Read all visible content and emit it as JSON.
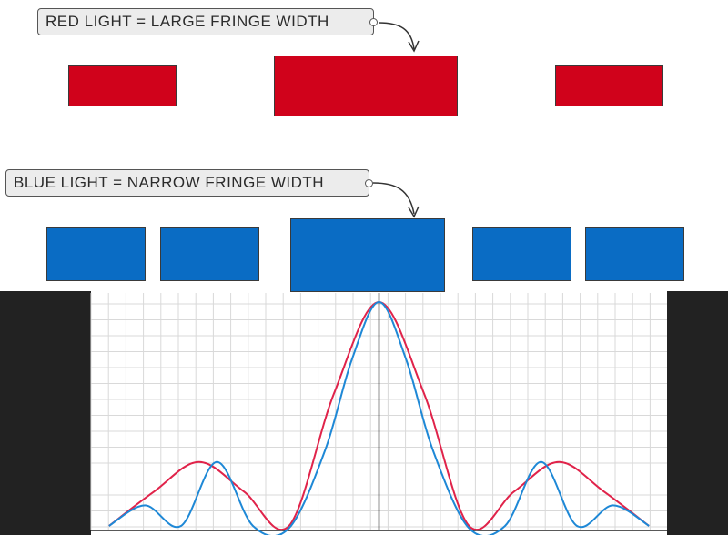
{
  "labels": {
    "red": "RED LIGHT = LARGE FRINGE WIDTH",
    "blue": "BLUE LIGHT = NARROW FRINGE WIDTH"
  },
  "colors": {
    "red": "#d0021b",
    "blue": "#0a6cc4",
    "red_curve": "#e0234a",
    "blue_curve": "#1e88d6",
    "grid": "#d9d9d9",
    "panel": "#222222",
    "axis": "#222222"
  },
  "fringes": {
    "red": {
      "count": 3,
      "central": "wide"
    },
    "blue": {
      "count": 5,
      "central": "wide"
    }
  },
  "chart_data": {
    "type": "line",
    "title": "",
    "xlabel": "",
    "ylabel": "",
    "xlim": [
      -3.2,
      3.2
    ],
    "ylim": [
      0,
      1
    ],
    "grid": true,
    "series": [
      {
        "color": "red",
        "x": [
          -3.0,
          -2.5,
          -2.0,
          -1.5,
          -1.0,
          -0.5,
          0.0,
          0.5,
          1.0,
          1.5,
          2.0,
          2.5,
          3.0
        ],
        "y": [
          0.02,
          0.17,
          0.3,
          0.17,
          0.02,
          0.6,
          1.0,
          0.6,
          0.02,
          0.17,
          0.3,
          0.17,
          0.02
        ]
      },
      {
        "color": "blue",
        "x": [
          -3.0,
          -2.6,
          -2.2,
          -1.8,
          -1.4,
          -1.0,
          -0.6,
          -0.3,
          0.0,
          0.3,
          0.6,
          1.0,
          1.4,
          1.8,
          2.2,
          2.6,
          3.0
        ],
        "y": [
          0.02,
          0.11,
          0.02,
          0.3,
          0.02,
          0.01,
          0.35,
          0.75,
          1.0,
          0.75,
          0.35,
          0.01,
          0.02,
          0.3,
          0.02,
          0.11,
          0.02
        ]
      }
    ]
  }
}
